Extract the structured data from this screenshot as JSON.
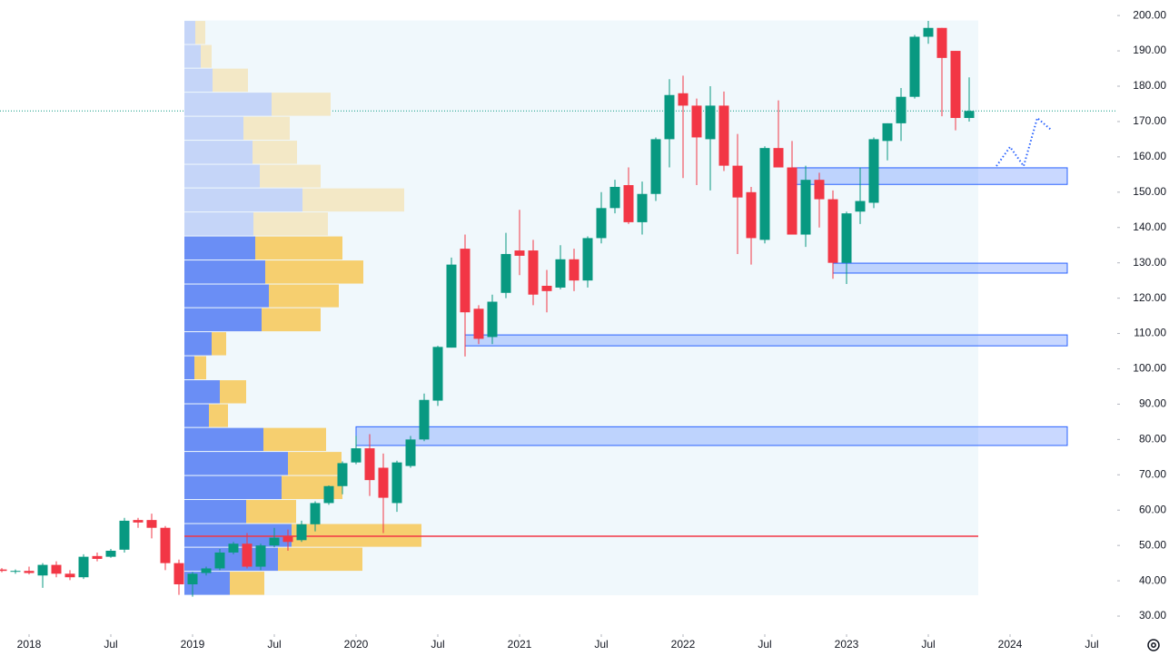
{
  "chart_data": {
    "type": "candlestick",
    "x": [
      "2017-11",
      "2017-12",
      "2018-01",
      "2018-02",
      "2018-03",
      "2018-04",
      "2018-05",
      "2018-06",
      "2018-07",
      "2018-08",
      "2018-09",
      "2018-10",
      "2018-11",
      "2018-12",
      "2019-01",
      "2019-02",
      "2019-03",
      "2019-04",
      "2019-05",
      "2019-06",
      "2019-07",
      "2019-08",
      "2019-09",
      "2019-10",
      "2019-11",
      "2019-12",
      "2020-01",
      "2020-02",
      "2020-03",
      "2020-04",
      "2020-05",
      "2020-06",
      "2020-07",
      "2020-08",
      "2020-09",
      "2020-10",
      "2020-11",
      "2020-12",
      "2021-01",
      "2021-02",
      "2021-03",
      "2021-04",
      "2021-05",
      "2021-06",
      "2021-07",
      "2021-08",
      "2021-09",
      "2021-10",
      "2021-11",
      "2021-12",
      "2022-01",
      "2022-02",
      "2022-03",
      "2022-04",
      "2022-05",
      "2022-06",
      "2022-07",
      "2022-08",
      "2022-09",
      "2022-10",
      "2022-11",
      "2022-12",
      "2023-01",
      "2023-02",
      "2023-03",
      "2023-04",
      "2023-05",
      "2023-06",
      "2023-07",
      "2023-08",
      "2023-09",
      "2023-10"
    ],
    "open": [
      43.2,
      42.6,
      42.8,
      41.5,
      44.5,
      42,
      41,
      47,
      46.8,
      48.8,
      57.2,
      57.2,
      55,
      45,
      39,
      42.2,
      43.5,
      48,
      50.5,
      44,
      50,
      52.5,
      51.5,
      56,
      62,
      66.8,
      73.5,
      77.5,
      72,
      62,
      72.5,
      80,
      91,
      106,
      134,
      117,
      109,
      121.5,
      133.5,
      133.5,
      123.5,
      123,
      131,
      125,
      137,
      145.5,
      152,
      141.5,
      149.5,
      165,
      178,
      174.5,
      165,
      174.5,
      157.5,
      150,
      136.5,
      162.5,
      157,
      138,
      153.5,
      148,
      130,
      144.5,
      147,
      164.5,
      169.5,
      177,
      194,
      196.5,
      190,
      171
    ],
    "high": [
      43.6,
      43.2,
      44,
      45,
      45.5,
      43,
      47.5,
      48,
      49,
      57.8,
      57.8,
      59,
      55.5,
      46,
      42.5,
      44,
      49,
      51,
      53.5,
      50.5,
      55,
      54.5,
      57,
      62.5,
      67,
      73.8,
      81,
      81.5,
      76,
      74,
      81,
      93,
      106.5,
      131.5,
      138,
      118,
      121,
      138.5,
      145,
      136.5,
      128,
      135,
      134,
      137.5,
      150,
      153.5,
      157,
      153,
      165.5,
      182,
      183,
      176.5,
      180,
      178.5,
      166.5,
      151.5,
      163,
      176,
      164.5,
      157.5,
      155.5,
      150.5,
      144.5,
      157,
      165.5,
      169.5,
      179.5,
      194.5,
      198.5,
      196.5,
      190,
      182.5
    ],
    "low": [
      42.4,
      42,
      41.8,
      38,
      41,
      40.2,
      40.5,
      45.5,
      46.5,
      48,
      55,
      52,
      43,
      36,
      35.5,
      41.5,
      43,
      47.5,
      43.5,
      43,
      49.5,
      48.5,
      51,
      54,
      61.5,
      64.5,
      73,
      64,
      53.5,
      59.5,
      72,
      79.5,
      89.5,
      106,
      103.5,
      107,
      107,
      120,
      126.5,
      118,
      116,
      122.5,
      122,
      123,
      135.5,
      144,
      141,
      138,
      147.5,
      157,
      154,
      152,
      150.5,
      156,
      132.5,
      129.5,
      135.5,
      157,
      138,
      134.5,
      140,
      125.5,
      124,
      141,
      145.5,
      159,
      164.5,
      176.5,
      192,
      171.5,
      167.5,
      170
    ],
    "close": [
      42.8,
      42.8,
      42.2,
      44.5,
      42,
      41,
      46.8,
      46.2,
      48.5,
      57,
      56.5,
      55,
      45,
      39,
      42,
      43.5,
      48,
      50.5,
      44,
      50,
      52.2,
      51,
      56,
      62,
      66.8,
      73.3,
      77.5,
      68.5,
      63.5,
      73.5,
      80,
      91.2,
      106.2,
      129.5,
      116,
      108.5,
      119,
      132.5,
      132,
      121,
      122,
      131,
      125,
      137,
      145.5,
      151.5,
      141.5,
      149.5,
      165,
      177.5,
      174.5,
      165.5,
      174.5,
      157.5,
      148.5,
      137,
      162.5,
      157,
      138,
      153.5,
      148,
      130,
      144,
      147.5,
      165,
      169.5,
      177,
      194,
      196.5,
      188,
      171,
      173
    ],
    "up_color": "#089981",
    "down_color": "#f23645",
    "xlim": [
      "2017-11",
      "2024-08"
    ],
    "xticks": [
      {
        "value": "2018-01",
        "label": "2018"
      },
      {
        "value": "2018-07",
        "label": "Jul"
      },
      {
        "value": "2019-01",
        "label": "2019"
      },
      {
        "value": "2019-07",
        "label": "Jul"
      },
      {
        "value": "2020-01",
        "label": "2020"
      },
      {
        "value": "2020-07",
        "label": "Jul"
      },
      {
        "value": "2021-01",
        "label": "2021"
      },
      {
        "value": "2021-07",
        "label": "Jul"
      },
      {
        "value": "2022-01",
        "label": "2022"
      },
      {
        "value": "2022-07",
        "label": "Jul"
      },
      {
        "value": "2023-01",
        "label": "2023"
      },
      {
        "value": "2023-07",
        "label": "Jul"
      },
      {
        "value": "2024-01",
        "label": "2024"
      },
      {
        "value": "2024-07",
        "label": "Jul"
      }
    ],
    "ylim": [
      25.9,
      204.4
    ],
    "yticks": [
      {
        "value": 30,
        "label": "30.00"
      },
      {
        "value": 40,
        "label": "40.00"
      },
      {
        "value": 50,
        "label": "50.00"
      },
      {
        "value": 60,
        "label": "60.00"
      },
      {
        "value": 70,
        "label": "70.00"
      },
      {
        "value": 80,
        "label": "80.00"
      },
      {
        "value": 90,
        "label": "90.00"
      },
      {
        "value": 100,
        "label": "100.00"
      },
      {
        "value": 110,
        "label": "110.00"
      },
      {
        "value": 120,
        "label": "120.00"
      },
      {
        "value": 130,
        "label": "130.00"
      },
      {
        "value": 140,
        "label": "140.00"
      },
      {
        "value": 150,
        "label": "150.00"
      },
      {
        "value": 160,
        "label": "160.00"
      },
      {
        "value": 170,
        "label": "170.00"
      },
      {
        "value": 180,
        "label": "180.00"
      },
      {
        "value": 190,
        "label": "190.00"
      },
      {
        "value": 200,
        "label": "200.00"
      }
    ],
    "volume_profile": {
      "range": [
        "2018-12",
        "2023-10"
      ],
      "bins": [
        35.9,
        42.7,
        49.5,
        56.2,
        63.0,
        69.8,
        76.6,
        83.4,
        90.1,
        96.9,
        103.7,
        110.5,
        117.3,
        124.0,
        130.8,
        137.6,
        144.4,
        151.2,
        157.9,
        164.7,
        171.5,
        178.3,
        185.1,
        191.8,
        198.6
      ],
      "up": [
        50,
        103,
        118,
        68,
        107,
        114,
        87,
        27,
        39,
        11,
        30,
        85,
        93,
        89,
        78,
        76,
        130,
        83,
        75,
        65,
        96,
        31,
        18,
        12
      ],
      "down": [
        38,
        93,
        143,
        55,
        67,
        59,
        69,
        21,
        29,
        13,
        16,
        65,
        77,
        108,
        96,
        82,
        112,
        67,
        49,
        51,
        65,
        39,
        12,
        11
      ],
      "value_area": [
        35.9,
        137.6
      ],
      "up_color": "#6a8ef5",
      "down_color": "#f6cf6f",
      "up_color_outside": "#c5d5f8",
      "down_color_outside": "#f3e8c6",
      "poc": 52.6,
      "poc_color": "#f23645"
    },
    "zones": [
      {
        "from": "2020-01",
        "to": "2024-05",
        "top": 83.6,
        "bottom": 78.3
      },
      {
        "from": "2020-09",
        "to": "2024-05",
        "top": 109.6,
        "bottom": 106.5
      },
      {
        "from": "2022-12",
        "to": "2024-05",
        "top": 129.9,
        "bottom": 127.1
      },
      {
        "from": "2022-09",
        "to": "2024-05",
        "top": 156.9,
        "bottom": 152.2
      }
    ],
    "zone_color": "#2962ff",
    "projection": {
      "x": [
        "2023-12",
        "2024-01",
        "2024-02",
        "2024-03",
        "2024-04"
      ],
      "values": [
        157.4,
        162.8,
        157.4,
        171.0,
        167.7
      ],
      "color": "#2962ff"
    }
  }
}
